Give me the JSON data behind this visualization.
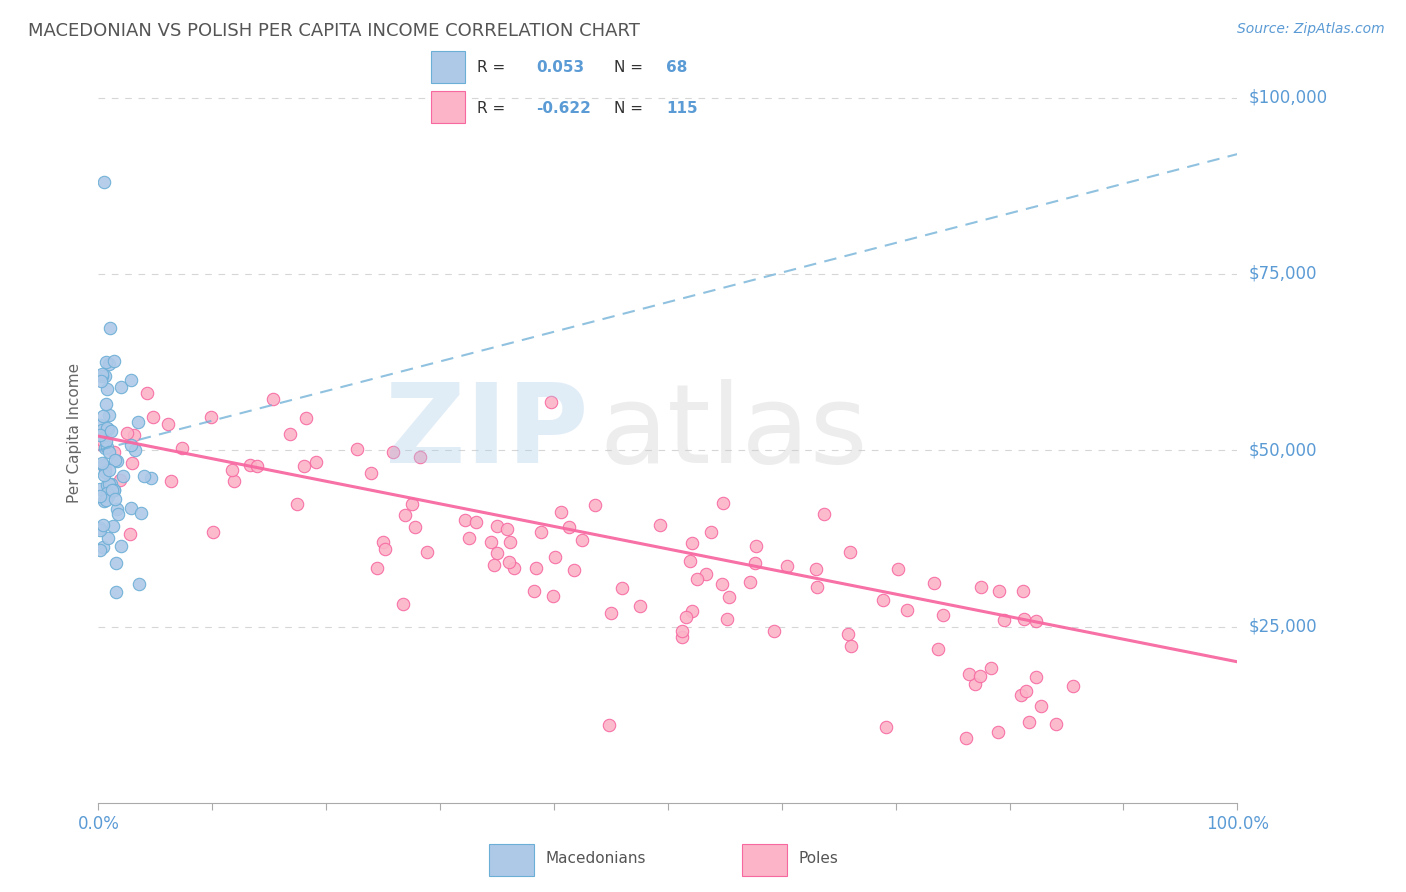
{
  "title": "MACEDONIAN VS POLISH PER CAPITA INCOME CORRELATION CHART",
  "source_text": "Source: ZipAtlas.com",
  "ylabel": "Per Capita Income",
  "xlim": [
    0,
    1
  ],
  "ylim": [
    0,
    105000
  ],
  "blue_color": "#6baed6",
  "blue_fill": "#aec9e8",
  "pink_color": "#f768a1",
  "pink_fill": "#fbb4c8",
  "background_color": "#ffffff",
  "grid_color": "#cccccc",
  "title_color": "#555555",
  "axis_label_color": "#666666",
  "tick_color": "#5b9bd5",
  "legend_text_color": "#333333",
  "source_color": "#5b9bd5"
}
